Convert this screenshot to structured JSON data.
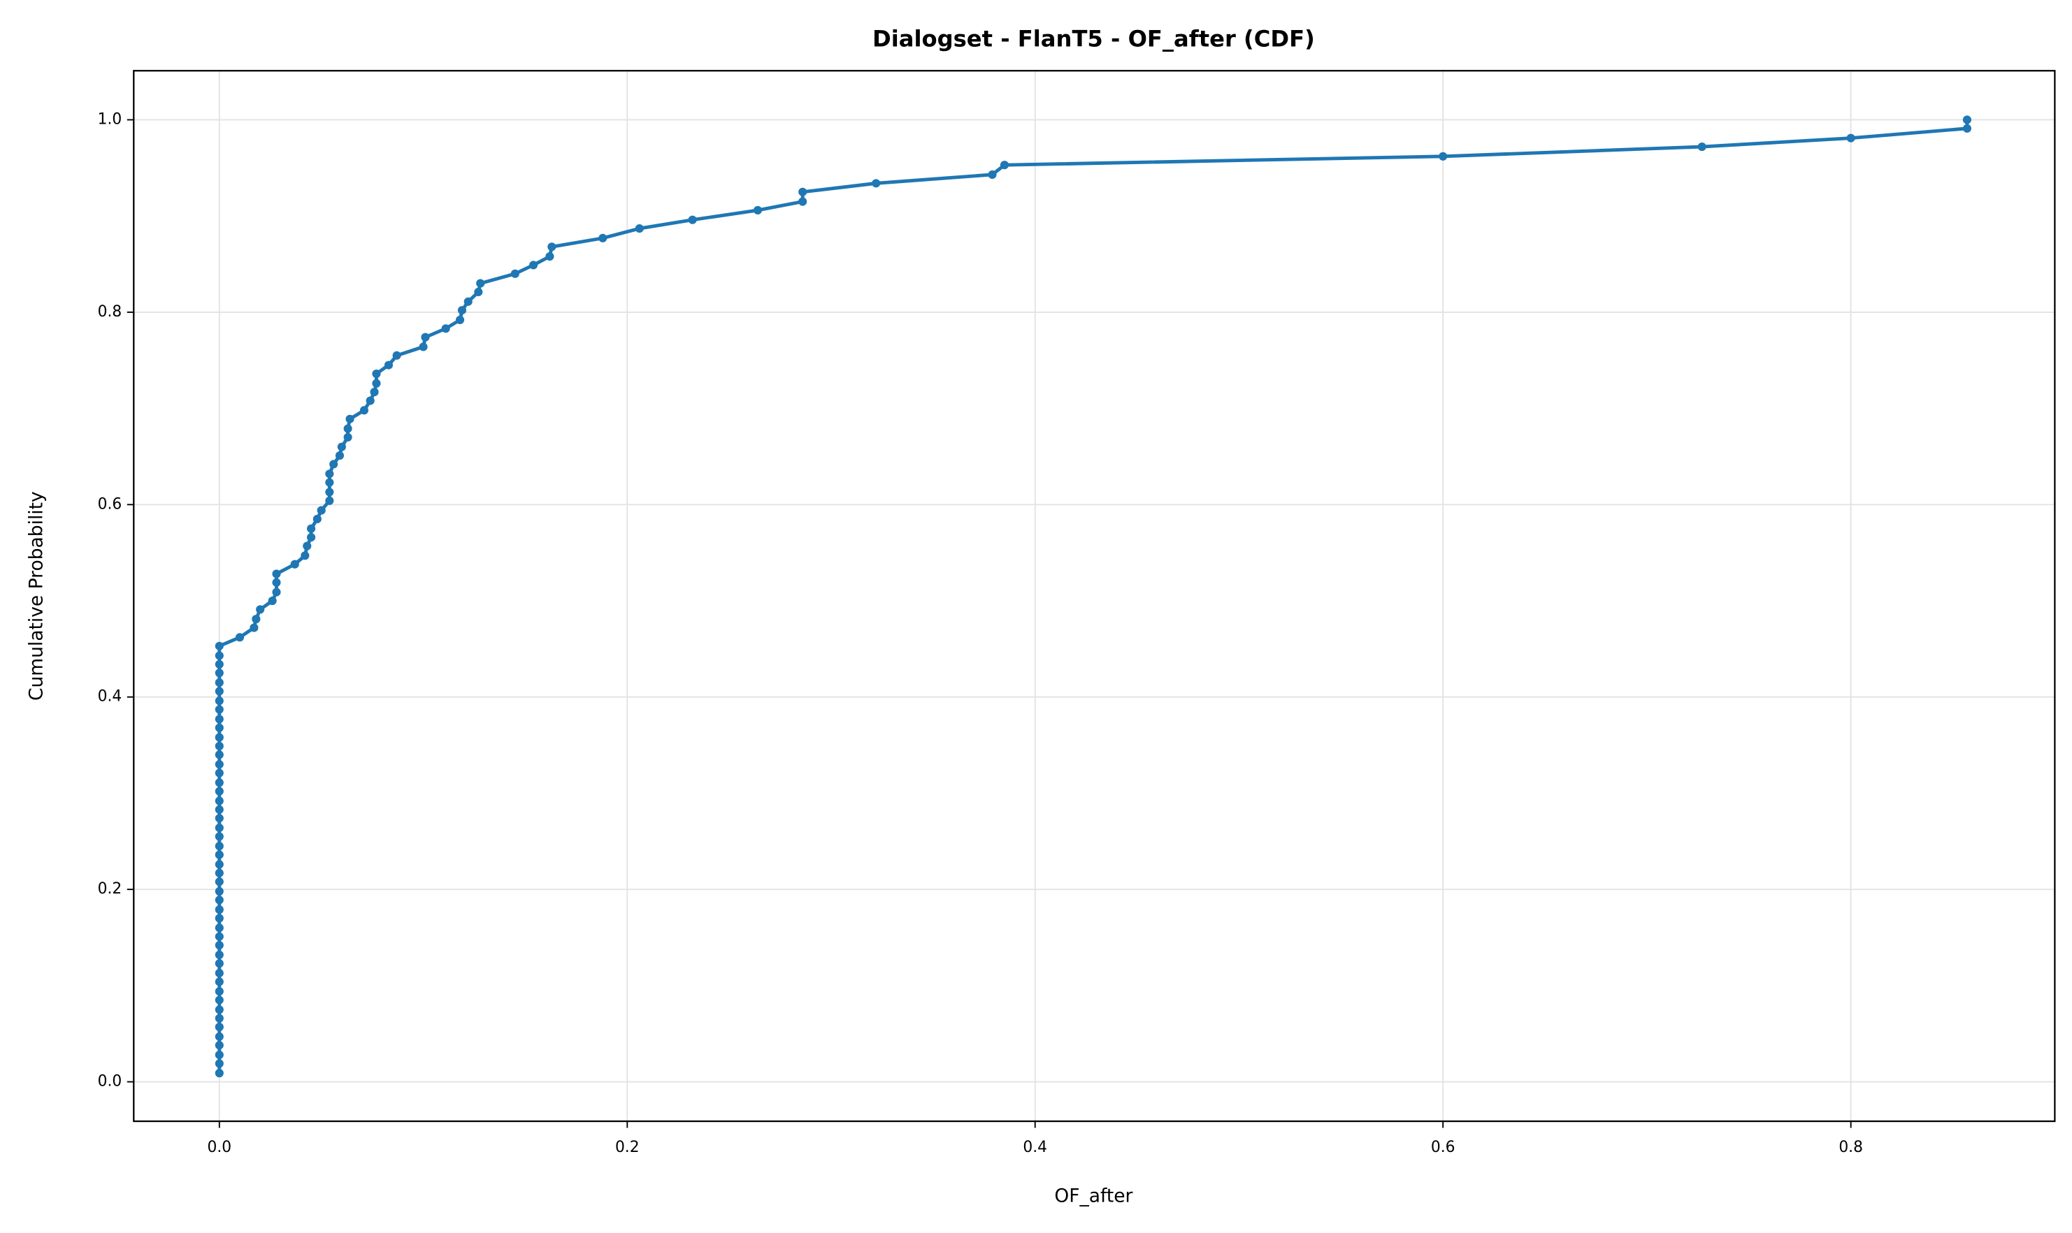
{
  "chart_data": {
    "type": "line",
    "title": "Dialogset - FlanT5 - OF_after (CDF)",
    "xlabel": "OF_after",
    "ylabel": "Cumulative Probability",
    "series": [
      {
        "color": "#1f77b4",
        "x": [
          0,
          0,
          0,
          0,
          0,
          0,
          0,
          0,
          0,
          0,
          0,
          0,
          0,
          0,
          0,
          0,
          0,
          0,
          0,
          0,
          0,
          0,
          0,
          0,
          0,
          0,
          0,
          0,
          0,
          0,
          0,
          0,
          0,
          0,
          0,
          0,
          0,
          0,
          0,
          0,
          0,
          0,
          0,
          0,
          0,
          0,
          0,
          0,
          0.01,
          0.017,
          0.018,
          0.02,
          0.026,
          0.028,
          0.028,
          0.028,
          0.037,
          0.042,
          0.043,
          0.045,
          0.045,
          0.048,
          0.05,
          0.054,
          0.054,
          0.054,
          0.054,
          0.056,
          0.059,
          0.06,
          0.063,
          0.063,
          0.064,
          0.071,
          0.074,
          0.076,
          0.077,
          0.077,
          0.083,
          0.087,
          0.1,
          0.101,
          0.111,
          0.118,
          0.119,
          0.122,
          0.127,
          0.128,
          0.145,
          0.154,
          0.162,
          0.163,
          0.188,
          0.206,
          0.232,
          0.264,
          0.286,
          0.286,
          0.322,
          0.379,
          0.385,
          0.6,
          0.727,
          0.8,
          0.857,
          0.857
        ],
        "values": [
          0.009,
          0.019,
          0.028,
          0.038,
          0.047,
          0.057,
          0.066,
          0.075,
          0.085,
          0.094,
          0.104,
          0.113,
          0.123,
          0.132,
          0.142,
          0.151,
          0.16,
          0.17,
          0.179,
          0.189,
          0.198,
          0.208,
          0.217,
          0.226,
          0.236,
          0.245,
          0.255,
          0.264,
          0.274,
          0.283,
          0.292,
          0.302,
          0.311,
          0.321,
          0.33,
          0.34,
          0.349,
          0.358,
          0.368,
          0.377,
          0.387,
          0.396,
          0.406,
          0.415,
          0.425,
          0.434,
          0.443,
          0.453,
          0.462,
          0.472,
          0.481,
          0.491,
          0.5,
          0.509,
          0.519,
          0.528,
          0.538,
          0.547,
          0.557,
          0.566,
          0.575,
          0.585,
          0.594,
          0.604,
          0.613,
          0.623,
          0.632,
          0.642,
          0.651,
          0.66,
          0.67,
          0.679,
          0.689,
          0.698,
          0.708,
          0.717,
          0.726,
          0.736,
          0.745,
          0.755,
          0.764,
          0.774,
          0.783,
          0.792,
          0.802,
          0.811,
          0.821,
          0.83,
          0.84,
          0.849,
          0.858,
          0.868,
          0.877,
          0.887,
          0.896,
          0.906,
          0.915,
          0.925,
          0.934,
          0.943,
          0.953,
          0.962,
          0.972,
          0.981,
          0.991,
          1.0
        ]
      }
    ],
    "xlim": [
      -0.042,
      0.9
    ],
    "ylim": [
      -0.041,
      1.051
    ],
    "xticks": [
      {
        "value": 0,
        "label": "0.0"
      },
      0.2,
      0.4,
      0.6,
      0.8
    ],
    "yticks": [
      {
        "value": 0,
        "label": "0.0"
      },
      0.2,
      0.4,
      0.6,
      0.8,
      {
        "value": 1,
        "label": "1.0"
      }
    ],
    "grid": true
  }
}
